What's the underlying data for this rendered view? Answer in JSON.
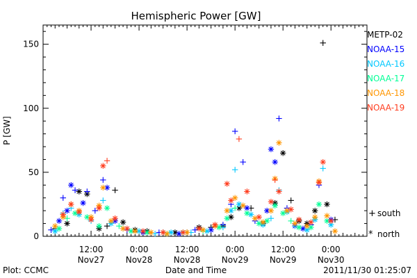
{
  "chart_data": {
    "type": "scatter",
    "title": "Hemispheric Power [GW]",
    "xlabel": "Date and Time",
    "ylabel": "P [GW]",
    "ylim": [
      0,
      165
    ],
    "yticks": [
      0,
      50,
      100,
      150
    ],
    "xlim_hours": [
      0,
      81
    ],
    "xticks": [
      {
        "h": 12,
        "time": "12:00",
        "date": "Nov27"
      },
      {
        "h": 24,
        "time": "0:00",
        "date": "Nov28"
      },
      {
        "h": 36,
        "time": "12:00",
        "date": "Nov28"
      },
      {
        "h": 48,
        "time": "0:00",
        "date": "Nov29"
      },
      {
        "h": 60,
        "time": "12:00",
        "date": "Nov29"
      },
      {
        "h": 72,
        "time": "0:00",
        "date": "Nov30"
      }
    ],
    "legend_position": "right",
    "symbol_legend": [
      {
        "marker": "+",
        "label": "south"
      },
      {
        "marker": "*",
        "label": "north"
      }
    ],
    "series": [
      {
        "name": "METP-02",
        "color": "#000000",
        "points": [
          [
            3,
            6,
            "+"
          ],
          [
            6,
            10,
            "*"
          ],
          [
            9,
            35,
            "*"
          ],
          [
            11,
            33,
            "*"
          ],
          [
            14,
            6,
            "*"
          ],
          [
            16,
            8,
            "+"
          ],
          [
            18,
            36,
            "+"
          ],
          [
            20,
            11,
            "*"
          ],
          [
            23,
            5,
            "*"
          ],
          [
            26,
            4,
            "*"
          ],
          [
            30,
            3,
            "+"
          ],
          [
            33,
            3,
            "*"
          ],
          [
            36,
            3,
            "+"
          ],
          [
            39,
            7,
            "*"
          ],
          [
            42,
            7,
            "+"
          ],
          [
            45,
            8,
            "*"
          ],
          [
            47,
            15,
            "*"
          ],
          [
            49,
            22,
            "*"
          ],
          [
            52,
            22,
            "+"
          ],
          [
            55,
            10,
            "*"
          ],
          [
            58,
            26,
            "*"
          ],
          [
            60,
            65,
            "*"
          ],
          [
            62,
            28,
            "+"
          ],
          [
            64,
            12,
            "*"
          ],
          [
            66,
            10,
            "*"
          ],
          [
            68,
            20,
            "*"
          ],
          [
            70,
            151,
            "+"
          ],
          [
            71,
            25,
            "*"
          ],
          [
            73,
            13,
            "+"
          ]
        ]
      },
      {
        "name": "NOAA-15",
        "color": "#0000ff",
        "points": [
          [
            2,
            5,
            "+"
          ],
          [
            4,
            12,
            "*"
          ],
          [
            5,
            30,
            "+"
          ],
          [
            6,
            20,
            "*"
          ],
          [
            7,
            40,
            "*"
          ],
          [
            8,
            36,
            "+"
          ],
          [
            10,
            26,
            "*"
          ],
          [
            11,
            35,
            "+"
          ],
          [
            13,
            20,
            "+"
          ],
          [
            15,
            44,
            "+"
          ],
          [
            16,
            38,
            "*"
          ],
          [
            18,
            12,
            "*"
          ],
          [
            21,
            5,
            "+"
          ],
          [
            25,
            3,
            "*"
          ],
          [
            29,
            3,
            "+"
          ],
          [
            34,
            2,
            "*"
          ],
          [
            38,
            5,
            "+"
          ],
          [
            42,
            5,
            "*"
          ],
          [
            45,
            9,
            "+"
          ],
          [
            47,
            25,
            "+"
          ],
          [
            48,
            82,
            "+"
          ],
          [
            50,
            58,
            "+"
          ],
          [
            51,
            22,
            "*"
          ],
          [
            53,
            12,
            "+"
          ],
          [
            56,
            20,
            "*"
          ],
          [
            57,
            68,
            "*"
          ],
          [
            58,
            58,
            "*"
          ],
          [
            59,
            92,
            "+"
          ],
          [
            61,
            22,
            "+"
          ],
          [
            63,
            8,
            "*"
          ],
          [
            65,
            6,
            "*"
          ],
          [
            67,
            9,
            "+"
          ],
          [
            69,
            40,
            "+"
          ],
          [
            72,
            13,
            "*"
          ]
        ]
      },
      {
        "name": "NOAA-16",
        "color": "#00c8ff",
        "points": [
          [
            3,
            4,
            "*"
          ],
          [
            5,
            18,
            "+"
          ],
          [
            7,
            22,
            "+"
          ],
          [
            9,
            17,
            "*"
          ],
          [
            12,
            12,
            "+"
          ],
          [
            15,
            28,
            "+"
          ],
          [
            17,
            10,
            "*"
          ],
          [
            20,
            6,
            "+"
          ],
          [
            24,
            4,
            "*"
          ],
          [
            28,
            2,
            "+"
          ],
          [
            32,
            3,
            "*"
          ],
          [
            37,
            3,
            "+"
          ],
          [
            41,
            4,
            "*"
          ],
          [
            45,
            7,
            "+"
          ],
          [
            47,
            20,
            "*"
          ],
          [
            48,
            52,
            "+"
          ],
          [
            49,
            25,
            "*"
          ],
          [
            52,
            17,
            "*"
          ],
          [
            55,
            9,
            "*"
          ],
          [
            57,
            14,
            "+"
          ],
          [
            59,
            36,
            "+"
          ],
          [
            61,
            19,
            "*"
          ],
          [
            63,
            8,
            "+"
          ],
          [
            66,
            5,
            "*"
          ],
          [
            68,
            13,
            "*"
          ],
          [
            70,
            53,
            "+"
          ],
          [
            72,
            9,
            "*"
          ]
        ]
      },
      {
        "name": "NOAA-17",
        "color": "#00ff96",
        "points": [
          [
            4,
            6,
            "*"
          ],
          [
            6,
            14,
            "+"
          ],
          [
            8,
            18,
            "*"
          ],
          [
            11,
            15,
            "*"
          ],
          [
            14,
            8,
            "*"
          ],
          [
            16,
            22,
            "*"
          ],
          [
            19,
            8,
            "+"
          ],
          [
            22,
            4,
            "*"
          ],
          [
            26,
            3,
            "*"
          ],
          [
            31,
            2,
            "*"
          ],
          [
            35,
            3,
            "*"
          ],
          [
            40,
            4,
            "+"
          ],
          [
            44,
            7,
            "*"
          ],
          [
            46,
            14,
            "*"
          ],
          [
            48,
            22,
            "+"
          ],
          [
            51,
            18,
            "*"
          ],
          [
            54,
            10,
            "*"
          ],
          [
            56,
            12,
            "*"
          ],
          [
            58,
            24,
            "*"
          ],
          [
            60,
            18,
            "*"
          ],
          [
            62,
            12,
            "+"
          ],
          [
            64,
            7,
            "*"
          ],
          [
            67,
            7,
            "*"
          ],
          [
            69,
            25,
            "*"
          ],
          [
            71,
            12,
            "*"
          ]
        ]
      },
      {
        "name": "NOAA-18",
        "color": "#ff9600",
        "points": [
          [
            3,
            8,
            "*"
          ],
          [
            5,
            15,
            "*"
          ],
          [
            7,
            25,
            "*"
          ],
          [
            9,
            20,
            "*"
          ],
          [
            12,
            15,
            "*"
          ],
          [
            14,
            24,
            "*"
          ],
          [
            15,
            38,
            "*"
          ],
          [
            17,
            12,
            "*"
          ],
          [
            20,
            6,
            "*"
          ],
          [
            23,
            4,
            "*"
          ],
          [
            27,
            3,
            "*"
          ],
          [
            31,
            2,
            "*"
          ],
          [
            36,
            3,
            "*"
          ],
          [
            40,
            5,
            "*"
          ],
          [
            43,
            8,
            "*"
          ],
          [
            46,
            20,
            "*"
          ],
          [
            48,
            30,
            "*"
          ],
          [
            50,
            24,
            "*"
          ],
          [
            53,
            14,
            "*"
          ],
          [
            55,
            11,
            "*"
          ],
          [
            57,
            20,
            "*"
          ],
          [
            58,
            45,
            "*"
          ],
          [
            59,
            73,
            "*"
          ],
          [
            61,
            20,
            "*"
          ],
          [
            63,
            10,
            "*"
          ],
          [
            66,
            8,
            "*"
          ],
          [
            68,
            15,
            "*"
          ],
          [
            69,
            43,
            "*"
          ],
          [
            71,
            16,
            "*"
          ],
          [
            73,
            4,
            "*"
          ]
        ]
      },
      {
        "name": "NOAA-19",
        "color": "#ff3c1e",
        "points": [
          [
            5,
            17,
            "*"
          ],
          [
            7,
            25,
            "*"
          ],
          [
            9,
            19,
            "*"
          ],
          [
            12,
            13,
            "*"
          ],
          [
            14,
            22,
            "*"
          ],
          [
            15,
            55,
            "*"
          ],
          [
            16,
            59,
            "+"
          ],
          [
            18,
            14,
            "*"
          ],
          [
            21,
            6,
            "*"
          ],
          [
            25,
            4,
            "*"
          ],
          [
            30,
            3,
            "*"
          ],
          [
            35,
            3,
            "*"
          ],
          [
            39,
            6,
            "*"
          ],
          [
            43,
            9,
            "*"
          ],
          [
            46,
            41,
            "*"
          ],
          [
            47,
            28,
            "*"
          ],
          [
            49,
            76,
            "+"
          ],
          [
            51,
            35,
            "*"
          ],
          [
            54,
            15,
            "*"
          ],
          [
            57,
            27,
            "*"
          ],
          [
            58,
            44,
            "+"
          ],
          [
            59,
            35,
            "*"
          ],
          [
            62,
            21,
            "*"
          ],
          [
            64,
            13,
            "*"
          ],
          [
            67,
            11,
            "*"
          ],
          [
            69,
            42,
            "*"
          ],
          [
            70,
            58,
            "*"
          ],
          [
            72,
            12,
            "*"
          ]
        ]
      }
    ]
  },
  "footer": {
    "plot_credit": "Plot: CCMC",
    "timestamp": "2011/11/30 01:25:07"
  }
}
